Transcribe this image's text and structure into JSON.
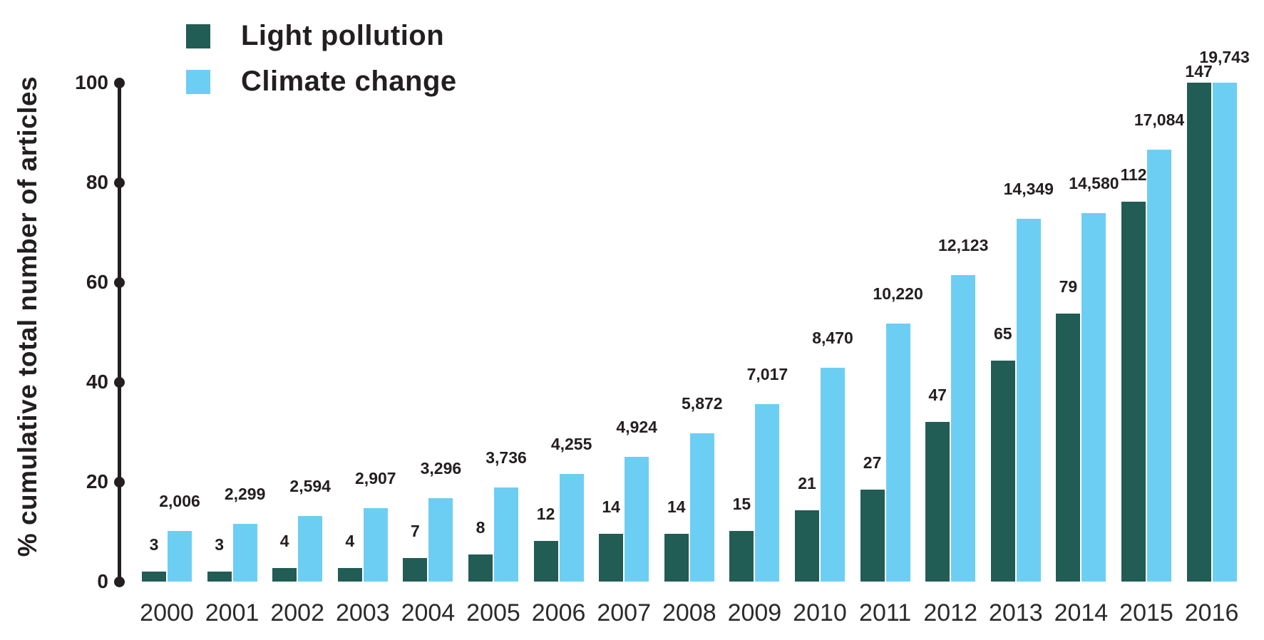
{
  "chart_data": {
    "type": "bar",
    "title": "",
    "ylabel": "% cumulative total number of articles",
    "xlabel": "",
    "categories": [
      "2000",
      "2001",
      "2002",
      "2003",
      "2004",
      "2005",
      "2006",
      "2007",
      "2008",
      "2009",
      "2010",
      "2011",
      "2012",
      "2013",
      "2014",
      "2015",
      "2016"
    ],
    "yticks": [
      0,
      20,
      40,
      60,
      80,
      100
    ],
    "ylim": [
      0,
      100
    ],
    "grid": false,
    "legend_position": "top-left",
    "axis_color": "#231F20",
    "text_color": "#231F20",
    "series": [
      {
        "name": "Light pollution",
        "color": "#215C55",
        "cumulative_counts": [
          3,
          3,
          4,
          4,
          7,
          8,
          12,
          14,
          14,
          15,
          21,
          27,
          47,
          65,
          79,
          112,
          147
        ],
        "labels": [
          "3",
          "3",
          "4",
          "4",
          "7",
          "8",
          "12",
          "14",
          "14",
          "15",
          "21",
          "27",
          "47",
          "65",
          "79",
          "112",
          "147"
        ],
        "percent_of_total": [
          2.04,
          2.04,
          2.72,
          2.72,
          4.76,
          5.44,
          8.16,
          9.52,
          9.52,
          10.2,
          14.29,
          18.37,
          31.97,
          44.22,
          53.74,
          76.19,
          100
        ]
      },
      {
        "name": "Climate change",
        "color": "#6DCEF4",
        "cumulative_counts": [
          2006,
          2299,
          2594,
          2907,
          3296,
          3736,
          4255,
          4924,
          5872,
          7017,
          8470,
          10220,
          12123,
          14349,
          14580,
          17084,
          19743
        ],
        "labels": [
          "2,006",
          "2,299",
          "2,594",
          "2,907",
          "3,296",
          "3,736",
          "4,255",
          "4,924",
          "5,872",
          "7,017",
          "8,470",
          "10,220",
          "12,123",
          "14,349",
          "14,580",
          "17,084",
          "19,743"
        ],
        "percent_of_total": [
          10.16,
          11.64,
          13.14,
          14.72,
          16.69,
          18.92,
          21.55,
          24.94,
          29.74,
          35.54,
          42.9,
          51.77,
          61.4,
          72.68,
          73.85,
          86.53,
          100
        ]
      }
    ]
  }
}
